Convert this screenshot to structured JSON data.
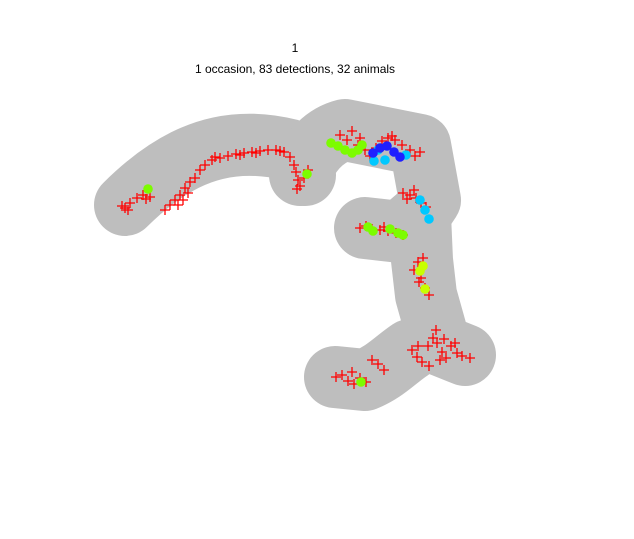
{
  "chart_data": {
    "type": "scatter",
    "title": "1",
    "subtitle": "1 occasion, 83 detections, 32 animals",
    "xlabel": "",
    "ylabel": "",
    "grid": false,
    "legend": "none",
    "colors": {
      "habitat_mask": "#bebebe",
      "traps": "#ff0000",
      "green": "#7cfc00",
      "lime": "#aaff00",
      "yellow_green": "#c8ff00",
      "cyan": "#00c8ff",
      "deep_sky": "#1e90ff",
      "blue": "#1f1fff"
    },
    "trap_clusters": [
      {
        "name": "west-arc",
        "points": [
          [
            125,
            208
          ],
          [
            130,
            203
          ],
          [
            137,
            198
          ],
          [
            143,
            195
          ],
          [
            150,
            197
          ],
          [
            128,
            210
          ],
          [
            122,
            206
          ],
          [
            146,
            199
          ]
        ]
      },
      {
        "name": "north-arc",
        "points": [
          [
            165,
            210
          ],
          [
            170,
            205
          ],
          [
            175,
            200
          ],
          [
            180,
            195
          ],
          [
            185,
            188
          ],
          [
            190,
            182
          ],
          [
            195,
            178
          ],
          [
            200,
            170
          ],
          [
            205,
            165
          ],
          [
            212,
            160
          ],
          [
            220,
            158
          ],
          [
            228,
            156
          ],
          [
            236,
            154
          ],
          [
            244,
            153
          ],
          [
            252,
            152
          ],
          [
            260,
            151
          ],
          [
            268,
            150
          ],
          [
            276,
            150
          ],
          [
            284,
            152
          ],
          [
            290,
            157
          ],
          [
            294,
            165
          ],
          [
            296,
            172
          ],
          [
            298,
            180
          ],
          [
            300,
            186
          ],
          [
            304,
            178
          ],
          [
            308,
            170
          ],
          [
            178,
            205
          ],
          [
            183,
            200
          ],
          [
            188,
            193
          ],
          [
            215,
            157
          ],
          [
            240,
            155
          ],
          [
            256,
            153
          ],
          [
            280,
            151
          ],
          [
            297,
            189
          ]
        ]
      },
      {
        "name": "ne-cluster",
        "points": [
          [
            340,
            135
          ],
          [
            347,
            140
          ],
          [
            352,
            131
          ],
          [
            358,
            145
          ],
          [
            365,
            150
          ],
          [
            370,
            156
          ],
          [
            376,
            148
          ],
          [
            382,
            141
          ],
          [
            388,
            138
          ],
          [
            395,
            140
          ],
          [
            402,
            145
          ],
          [
            410,
            150
          ],
          [
            415,
            156
          ],
          [
            420,
            152
          ],
          [
            392,
            136
          ],
          [
            360,
            138
          ]
        ]
      },
      {
        "name": "east-cluster",
        "points": [
          [
            403,
            193
          ],
          [
            410,
            195
          ],
          [
            416,
            198
          ],
          [
            421,
            203
          ],
          [
            426,
            207
          ],
          [
            414,
            190
          ],
          [
            407,
            199
          ]
        ]
      },
      {
        "name": "middle-row",
        "points": [
          [
            360,
            228
          ],
          [
            366,
            226
          ],
          [
            372,
            229
          ],
          [
            380,
            230
          ],
          [
            388,
            231
          ],
          [
            396,
            233
          ],
          [
            403,
            235
          ],
          [
            384,
            227
          ]
        ]
      },
      {
        "name": "descent",
        "points": [
          [
            414,
            270
          ],
          [
            418,
            262
          ],
          [
            421,
            278
          ],
          [
            425,
            288
          ],
          [
            429,
            295
          ],
          [
            419,
            282
          ],
          [
            423,
            258
          ]
        ]
      },
      {
        "name": "se-cluster",
        "points": [
          [
            412,
            350
          ],
          [
            417,
            357
          ],
          [
            422,
            362
          ],
          [
            428,
            346
          ],
          [
            433,
            338
          ],
          [
            437,
            343
          ],
          [
            442,
            352
          ],
          [
            446,
            358
          ],
          [
            451,
            346
          ],
          [
            457,
            353
          ],
          [
            462,
            356
          ],
          [
            470,
            358
          ],
          [
            436,
            330
          ],
          [
            429,
            366
          ],
          [
            444,
            339
          ],
          [
            418,
            346
          ],
          [
            455,
            343
          ],
          [
            440,
            360
          ]
        ]
      },
      {
        "name": "south-cluster",
        "points": [
          [
            336,
            377
          ],
          [
            342,
            375
          ],
          [
            348,
            381
          ],
          [
            354,
            384
          ],
          [
            360,
            378
          ],
          [
            366,
            382
          ],
          [
            372,
            360
          ],
          [
            378,
            364
          ],
          [
            384,
            370
          ],
          [
            352,
            372
          ]
        ]
      }
    ],
    "detections": [
      {
        "color": "green",
        "points": [
          [
            148,
            189
          ],
          [
            307,
            174
          ],
          [
            331,
            143
          ],
          [
            338,
            146
          ],
          [
            345,
            150
          ],
          [
            352,
            153
          ],
          [
            358,
            150
          ],
          [
            362,
            145
          ],
          [
            368,
            227
          ],
          [
            373,
            231
          ],
          [
            390,
            229
          ],
          [
            398,
            233
          ],
          [
            403,
            235
          ],
          [
            361,
            382
          ]
        ]
      },
      {
        "color": "yellow_green",
        "points": [
          [
            420,
            271
          ],
          [
            423,
            266
          ],
          [
            425,
            289
          ]
        ]
      },
      {
        "color": "cyan",
        "points": [
          [
            385,
            160
          ],
          [
            374,
            161
          ],
          [
            420,
            200
          ],
          [
            425,
            210
          ],
          [
            429,
            219
          ],
          [
            406,
            155
          ],
          [
            378,
            150
          ]
        ]
      },
      {
        "color": "blue",
        "points": [
          [
            373,
            153
          ],
          [
            380,
            148
          ],
          [
            387,
            146
          ],
          [
            394,
            152
          ],
          [
            400,
            157
          ]
        ]
      }
    ]
  }
}
